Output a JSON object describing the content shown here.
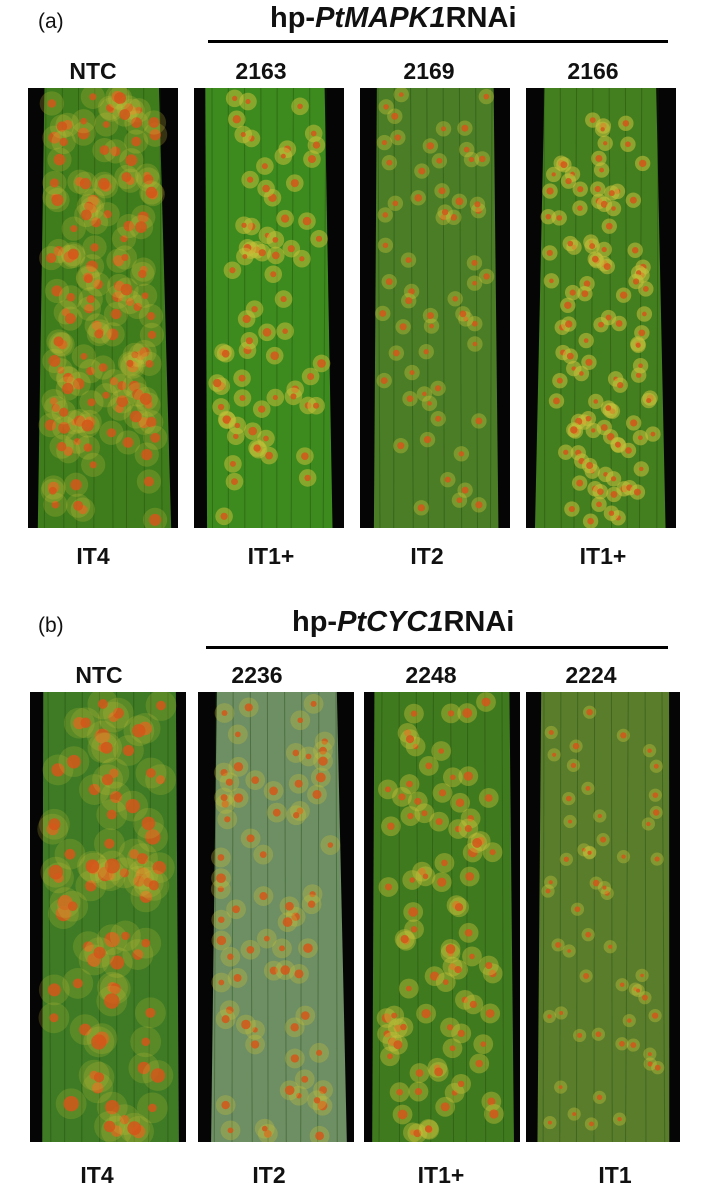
{
  "panels": [
    {
      "letter": "(a)",
      "group_prefix": "hp-",
      "group_italic": "PtMAPK1",
      "group_suffix": "RNAi",
      "leaves": [
        {
          "label": "NTC",
          "infection_type": "IT4"
        },
        {
          "label": "2163",
          "infection_type": "IT1+"
        },
        {
          "label": "2169",
          "infection_type": "IT2"
        },
        {
          "label": "2166",
          "infection_type": "IT1+"
        }
      ]
    },
    {
      "letter": "(b)",
      "group_prefix": "hp-",
      "group_italic": "PtCYC1",
      "group_suffix": "RNAi",
      "leaves": [
        {
          "label": "NTC",
          "infection_type": "IT4"
        },
        {
          "label": "2236",
          "infection_type": "IT2"
        },
        {
          "label": "2248",
          "infection_type": "IT1+"
        },
        {
          "label": "2224",
          "infection_type": "IT1"
        }
      ]
    }
  ],
  "colors": {
    "leaf_green": "#3f7d1c",
    "leaf_green_pale": "#6e8e63",
    "pustule_orange": "#d4561a",
    "chlorotic_halo": "#c8c23a",
    "background_black": "#050505"
  }
}
